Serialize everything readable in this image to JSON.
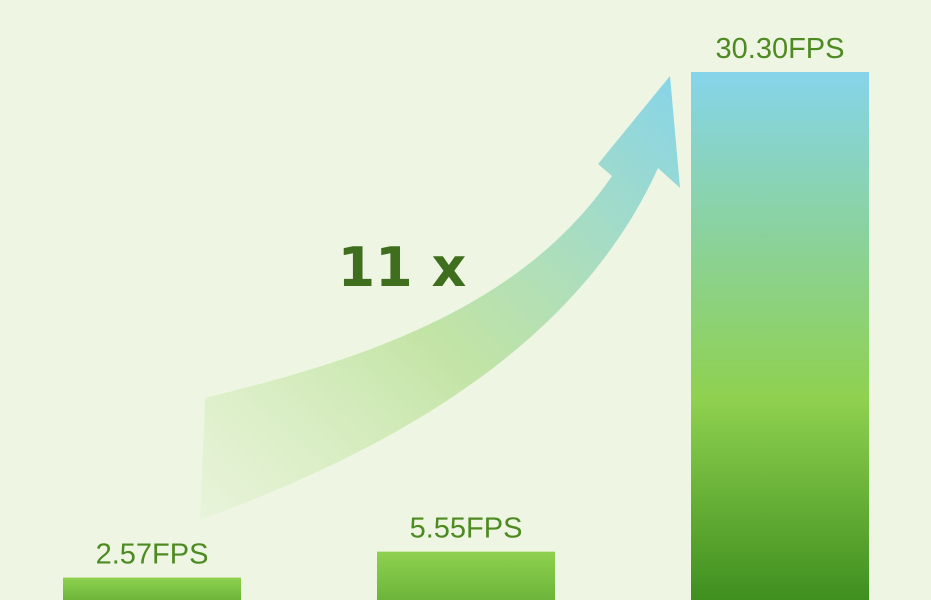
{
  "chart_data": {
    "type": "bar",
    "categories": [
      "",
      "",
      ""
    ],
    "values": [
      2.57,
      5.55,
      30.3
    ],
    "data_labels": [
      "2.57FPS",
      "5.55FPS",
      "30.30FPS"
    ],
    "annotation": "11 x",
    "title": "",
    "xlabel": "",
    "ylabel": "",
    "grid": false,
    "colors": {
      "background": "#eef6e3",
      "bar_top_green": "#8fd14f",
      "bar_bottom_green": "#3f8f1f",
      "bar_top_blue": "#86d4ea",
      "label_text": "#4e8a22",
      "annotation_text": "#3f6f1e",
      "arrow_start": "#c9e8a8",
      "arrow_end": "#86d4ea"
    }
  }
}
